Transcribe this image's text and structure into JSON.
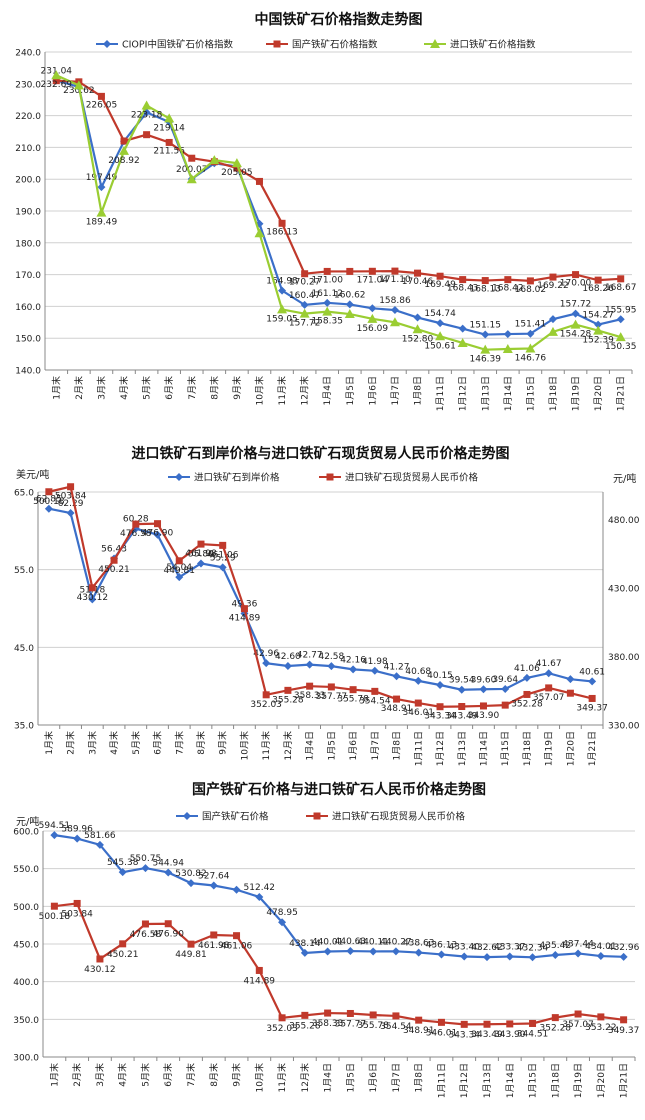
{
  "chart_data": [
    {
      "type": "line",
      "title": "中国铁矿石价格指数走势图",
      "categories": [
        "1月末",
        "2月末",
        "3月末",
        "4月末",
        "5月末",
        "6月末",
        "7月末",
        "8月末",
        "9月末",
        "10月末",
        "11月末",
        "12月末",
        "1月4日",
        "1月5日",
        "1月6日",
        "1月7日",
        "1月8日",
        "1月11日",
        "1月12日",
        "1月13日",
        "1月14日",
        "1月15日",
        "1月18日",
        "1月19日",
        "1月20日",
        "1月21日"
      ],
      "ylim": [
        140,
        240
      ],
      "yticks": [
        140,
        150,
        160,
        170,
        180,
        190,
        200,
        210,
        220,
        230,
        240
      ],
      "ytick_labels": [
        "140.0",
        "150.0",
        "160.0",
        "170.0",
        "180.0",
        "190.0",
        "200.0",
        "210.0",
        "220.0",
        "230.0",
        "240.0"
      ],
      "series": [
        {
          "name": "CIOPI中国铁矿石价格指数",
          "color": "#3B6FC9",
          "marker": "diamond",
          "values": [
            231.04,
            229.0,
            197.49,
            211.95,
            221.0,
            218.0,
            200.07,
            205.0,
            204.0,
            186.0,
            164.98,
            160.47,
            161.12,
            160.62,
            159.4,
            158.86,
            156.5,
            154.74,
            153.0,
            151.15,
            151.3,
            151.41,
            156.0,
            157.72,
            154.27,
            155.95
          ],
          "labels": [
            "231.04",
            "",
            "197.49",
            "",
            "",
            "",
            "200.07",
            "",
            "",
            "",
            "164.98",
            "160.47",
            "161.12",
            "160.62",
            "",
            "158.86",
            "",
            "154.74",
            "",
            "151.15",
            "",
            "151.41",
            "",
            "157.72",
            "154.27",
            "155.95"
          ]
        },
        {
          "name": "国产铁矿石价格指数",
          "color": "#C0392B",
          "marker": "square",
          "values": [
            231.0,
            230.62,
            226.05,
            212.0,
            214.0,
            211.56,
            206.6,
            205.5,
            203.5,
            199.3,
            186.13,
            170.27,
            171.0,
            171.0,
            171.04,
            171.1,
            170.46,
            169.49,
            168.43,
            168.13,
            168.42,
            168.02,
            169.22,
            170.0,
            168.26,
            168.67
          ],
          "labels": [
            "",
            "230.62",
            "226.05",
            "",
            "",
            "211.56",
            "",
            "",
            "",
            "",
            "186.13",
            "170.27",
            "171.00",
            "",
            "171.04",
            "171.10",
            "170.46",
            "169.49",
            "168.43",
            "168.13",
            "168.42",
            "168.02",
            "169.22",
            "170.00",
            "168.26",
            "168.67"
          ]
        },
        {
          "name": "进口铁矿石价格指数",
          "color": "#9ACD32",
          "marker": "triangle",
          "values": [
            232.69,
            229.5,
            189.49,
            208.92,
            223.18,
            219.14,
            200.0,
            206.0,
            205.05,
            183.0,
            159.05,
            157.72,
            158.35,
            157.6,
            156.09,
            155.0,
            152.8,
            150.61,
            148.5,
            146.39,
            146.6,
            146.76,
            152.0,
            154.28,
            152.39,
            150.35
          ],
          "labels": [
            "232.69",
            "",
            "189.49",
            "208.92",
            "223.18",
            "219.14",
            "",
            "",
            "205.05",
            "",
            "159.05",
            "157.72",
            "158.35",
            "",
            "156.09",
            "",
            "152.80",
            "150.61",
            "",
            "146.39",
            "",
            "146.76",
            "",
            "154.28",
            "152.39",
            "150.35"
          ]
        }
      ]
    },
    {
      "type": "line",
      "title": "进口铁矿石到岸价格与进口铁矿石现货贸易人民币价格走势图",
      "ylabel_left": "美元/吨",
      "ylabel_right": "元/吨",
      "categories": [
        "1月末",
        "2月末",
        "3月末",
        "4月末",
        "5月末",
        "6月末",
        "7月末",
        "8月末",
        "9月末",
        "10月末",
        "11月末",
        "12月末",
        "1月4日",
        "1月5日",
        "1月6日",
        "1月7日",
        "1月8日",
        "1月11日",
        "1月12日",
        "1月13日",
        "1月14日",
        "1月15日",
        "1月18日",
        "1月19日",
        "1月20日",
        "1月21日"
      ],
      "ylim_left": [
        35,
        65
      ],
      "yticks_left": [
        35,
        45,
        55,
        65
      ],
      "ytick_labels_left": [
        "35.0",
        "45.0",
        "55.0",
        "65.0"
      ],
      "ylim_right": [
        330,
        500
      ],
      "yticks_right": [
        330,
        380,
        430,
        480
      ],
      "ytick_labels_right": [
        "330.00",
        "380.00",
        "430.00",
        "480.00"
      ],
      "series": [
        {
          "name": "进口铁矿石到岸价格",
          "axis": "left",
          "color": "#3B6FC9",
          "marker": "diamond",
          "values": [
            62.85,
            62.29,
            51.18,
            56.43,
            60.28,
            59.5,
            54.04,
            55.8,
            55.29,
            49.36,
            42.96,
            42.6,
            42.77,
            42.58,
            42.16,
            41.98,
            41.27,
            40.68,
            40.15,
            39.54,
            39.6,
            39.64,
            41.06,
            41.67,
            40.9,
            40.61
          ],
          "labels": [
            "62.85",
            "62.29",
            "51.18",
            "56.43",
            "60.28",
            "",
            "54.04",
            "55.80",
            "55.29",
            "49.36",
            "42.96",
            "42.60",
            "42.77",
            "42.58",
            "42.16",
            "41.98",
            "41.27",
            "40.68",
            "40.15",
            "39.54",
            "39.60",
            "39.64",
            "41.06",
            "41.67",
            "",
            "40.61"
          ]
        },
        {
          "name": "进口铁矿石现货贸易人民币价格",
          "axis": "right",
          "color": "#C0392B",
          "marker": "square",
          "values": [
            500.18,
            503.84,
            430.12,
            450.21,
            476.58,
            476.9,
            449.81,
            461.98,
            461.06,
            414.89,
            352.03,
            355.28,
            358.33,
            357.77,
            355.78,
            354.54,
            348.91,
            346.01,
            343.34,
            343.49,
            343.9,
            344.5,
            352.28,
            357.07,
            353.2,
            349.37
          ],
          "labels": [
            "500.18",
            "503.84",
            "430.12",
            "450.21",
            "476.58",
            "476.90",
            "449.81",
            "461.98",
            "461.06",
            "414.89",
            "352.03",
            "355.28",
            "358.33",
            "357.77",
            "355.78",
            "354.54",
            "348.91",
            "346.01",
            "343.34",
            "343.49",
            "343.90",
            "",
            "352.28",
            "357.07",
            "",
            "349.37"
          ]
        }
      ]
    },
    {
      "type": "line",
      "title": "国产铁矿石价格与进口铁矿石人民币价格走势图",
      "ylabel": "元/吨",
      "categories": [
        "1月末",
        "2月末",
        "3月末",
        "4月末",
        "5月末",
        "6月末",
        "7月末",
        "8月末",
        "9月末",
        "10月末",
        "11月末",
        "12月末",
        "1月4日",
        "1月5日",
        "1月6日",
        "1月7日",
        "1月8日",
        "1月11日",
        "1月12日",
        "1月13日",
        "1月14日",
        "1月15日",
        "1月18日",
        "1月19日",
        "1月20日",
        "1月21日"
      ],
      "ylim": [
        300,
        600
      ],
      "yticks": [
        300,
        350,
        400,
        450,
        500,
        550,
        600
      ],
      "ytick_labels": [
        "300.0",
        "350.0",
        "400.0",
        "450.0",
        "500.0",
        "550.0",
        "600.0"
      ],
      "series": [
        {
          "name": "国产铁矿石价格",
          "color": "#3B6FC9",
          "marker": "diamond",
          "values": [
            594.51,
            589.96,
            581.66,
            545.38,
            550.75,
            544.94,
            530.82,
            527.64,
            522.0,
            512.42,
            478.95,
            438.14,
            440.01,
            440.63,
            440.11,
            440.27,
            438.63,
            436.13,
            433.4,
            432.62,
            433.37,
            432.34,
            435.42,
            437.44,
            434.01,
            432.96
          ],
          "labels": [
            "594.51",
            "589.96",
            "581.66",
            "545.38",
            "550.75",
            "544.94",
            "530.82",
            "527.64",
            "",
            "512.42",
            "478.95",
            "438.14",
            "440.01",
            "440.63",
            "440.11",
            "440.27",
            "438.63",
            "436.13",
            "433.40",
            "432.62",
            "433.37",
            "432.34",
            "435.42",
            "437.44",
            "434.01",
            "432.96"
          ]
        },
        {
          "name": "进口铁矿石现货贸易人民币价格",
          "color": "#C0392B",
          "marker": "square",
          "values": [
            500.18,
            503.84,
            430.12,
            450.21,
            476.58,
            476.9,
            449.81,
            461.98,
            461.06,
            414.89,
            352.03,
            355.28,
            358.33,
            357.77,
            355.78,
            354.54,
            348.91,
            346.01,
            343.34,
            343.49,
            343.9,
            344.51,
            352.28,
            357.07,
            353.22,
            349.37
          ],
          "labels": [
            "500.18",
            "503.84",
            "430.12",
            "450.21",
            "476.58",
            "476.90",
            "449.81",
            "461.98",
            "461.06",
            "414.89",
            "352.03",
            "355.28",
            "358.33",
            "357.77",
            "355.78",
            "354.54",
            "348.91",
            "346.01",
            "343.34",
            "343.49",
            "343.90",
            "344.51",
            "352.28",
            "357.07",
            "353.22",
            "349.37"
          ]
        }
      ]
    }
  ]
}
